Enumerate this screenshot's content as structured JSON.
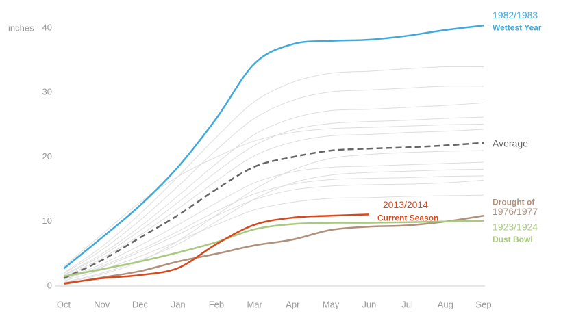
{
  "chart_data": {
    "type": "line",
    "y_label": "inches",
    "categories": [
      "Oct",
      "Nov",
      "Dec",
      "Jan",
      "Feb",
      "Mar",
      "Apr",
      "May",
      "Jun",
      "Jul",
      "Aug",
      "Sep"
    ],
    "ylim": [
      0,
      40
    ],
    "yticks": [
      0,
      10,
      20,
      30,
      40
    ],
    "background_color": "#dddddd",
    "background_series": [
      {
        "values": [
          2.0,
          6.1,
          11.2,
          17,
          23.1,
          28.6,
          31.6,
          33,
          33.3,
          33.7,
          34,
          34
        ]
      },
      {
        "values": [
          1.9,
          5.6,
          10.2,
          15.5,
          21.1,
          26,
          28.8,
          30.1,
          30.4,
          30.7,
          31,
          31
        ]
      },
      {
        "values": [
          1.7,
          5,
          9.2,
          14,
          19,
          23.5,
          26,
          27.2,
          27.4,
          27.7,
          28,
          28.4
        ]
      },
      {
        "values": [
          1.6,
          4.7,
          8.6,
          13,
          17.7,
          21.8,
          24.2,
          25.2,
          25.5,
          25.7,
          26,
          26.2
        ]
      },
      {
        "values": [
          1.4,
          4.3,
          7.9,
          12,
          16.3,
          20.2,
          22.3,
          23.3,
          23.5,
          23.8,
          24,
          24.3
        ]
      },
      {
        "values": [
          1.1,
          3.4,
          6.3,
          9.5,
          12.9,
          16,
          17.7,
          18.4,
          18.6,
          18.8,
          19,
          19.2
        ]
      },
      {
        "values": [
          1,
          3.1,
          5.6,
          8.5,
          11.6,
          14.3,
          15.8,
          16.5,
          16.7,
          16.8,
          17,
          17.1
        ]
      },
      {
        "values": [
          1,
          2.9,
          5.3,
          8,
          10.9,
          13.4,
          14.9,
          15.5,
          15.7,
          15.8,
          16,
          16.4
        ]
      },
      {
        "values": [
          0.8,
          2.5,
          4.6,
          7,
          9.5,
          11.8,
          13,
          13.6,
          13.7,
          13.9,
          14,
          14.1
        ]
      },
      {
        "values": [
          0.5,
          1.8,
          3.8,
          7,
          11,
          15,
          18,
          19.8,
          20.4,
          20.7,
          20.9,
          21
        ]
      },
      {
        "values": [
          3,
          8,
          13,
          17,
          20,
          22.5,
          23.8,
          24.4,
          24.6,
          24.8,
          25,
          25.1
        ]
      },
      {
        "values": [
          0.6,
          2,
          4,
          6.5,
          10,
          13.5,
          16,
          17.2,
          17.6,
          17.8,
          18,
          18.1
        ]
      }
    ],
    "series": [
      {
        "name": "1982/1983",
        "note": "Wettest Year",
        "color": "#3fa9dc",
        "values": [
          2.7,
          7.5,
          12.5,
          18.5,
          26,
          34.5,
          37.5,
          38,
          38.2,
          38.8,
          39.7,
          40.4
        ]
      },
      {
        "name": "Average",
        "color": "#666666",
        "dashed": true,
        "values": [
          1.2,
          4,
          7.5,
          11,
          15,
          18.5,
          20,
          21,
          21.3,
          21.5,
          21.8,
          22.2
        ]
      },
      {
        "name": "1976/1977",
        "note": "Drought of",
        "color": "#b0907a",
        "values": [
          0.3,
          1.3,
          2.3,
          3.8,
          5,
          6.3,
          7.2,
          8.7,
          9.2,
          9.4,
          10,
          10.9
        ]
      },
      {
        "name": "1923/1924",
        "note": "Dust Bowl",
        "color": "#a8c97f",
        "values": [
          1.5,
          2.6,
          3.8,
          5.2,
          6.8,
          8.8,
          9.6,
          9.8,
          9.8,
          9.9,
          10,
          10.1
        ]
      },
      {
        "name": "2013/2014",
        "note": "Current Season",
        "color": "#d9471a",
        "values": [
          0.4,
          1.2,
          1.7,
          2.8,
          6.5,
          9.5,
          10.6,
          10.9,
          11.1,
          null,
          null,
          null
        ]
      }
    ]
  }
}
